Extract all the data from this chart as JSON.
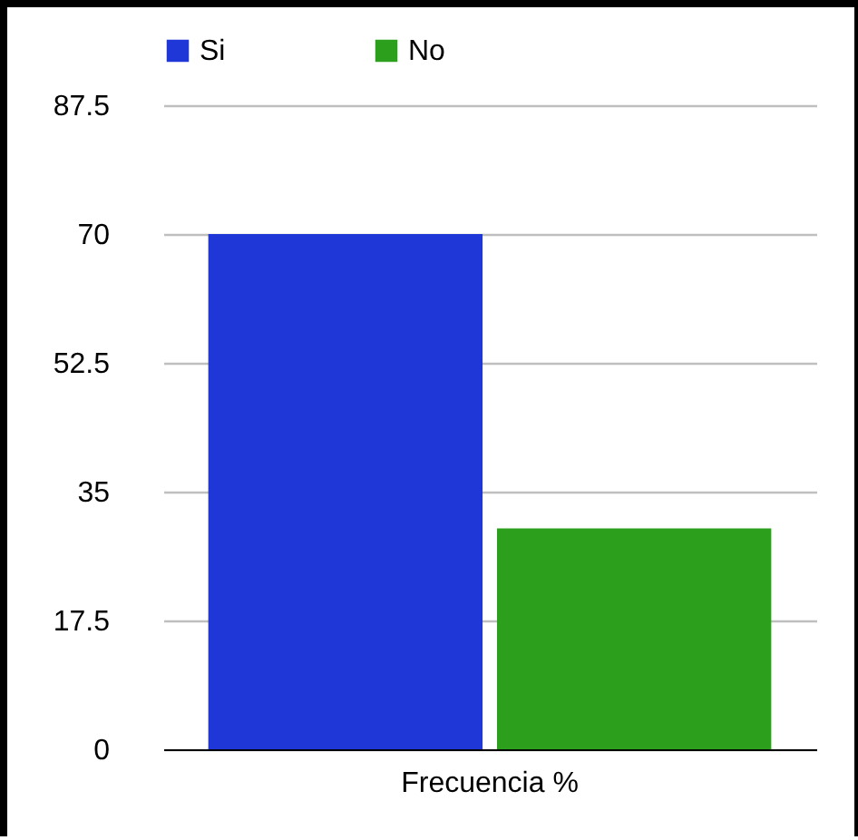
{
  "chart_data": {
    "type": "bar",
    "categories": [
      "Frecuencia %"
    ],
    "series": [
      {
        "name": "Si",
        "color": "#1f37d6",
        "values": [
          70
        ]
      },
      {
        "name": "No",
        "color": "#2ca01c",
        "values": [
          30
        ]
      }
    ],
    "ylim": [
      0,
      87.5
    ],
    "yticks": [
      0,
      17.5,
      35,
      52.5,
      70,
      87.5
    ],
    "grid": "y",
    "legend": "top"
  }
}
